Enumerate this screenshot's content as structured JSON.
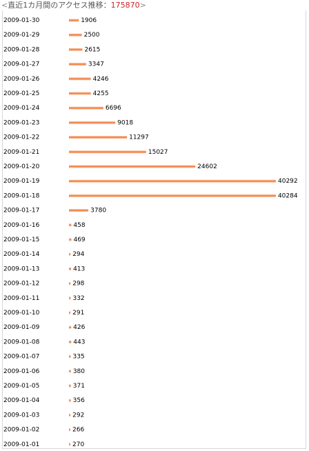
{
  "header": {
    "open": "<",
    "title": "直近1カ月間のアクセス推移：",
    "total": "175870",
    "close": ">"
  },
  "colors": {
    "bar": "#f07a3a",
    "bar_light": "#f9c9a8",
    "total": "#cc2222"
  },
  "chart_data": {
    "type": "bar",
    "orientation": "horizontal",
    "title": "直近1カ月間のアクセス推移：175870",
    "categories": [
      "2009-01-30",
      "2009-01-29",
      "2009-01-28",
      "2009-01-27",
      "2009-01-26",
      "2009-01-25",
      "2009-01-24",
      "2009-01-23",
      "2009-01-22",
      "2009-01-21",
      "2009-01-20",
      "2009-01-19",
      "2009-01-18",
      "2009-01-17",
      "2009-01-16",
      "2009-01-15",
      "2009-01-14",
      "2009-01-13",
      "2009-01-12",
      "2009-01-11",
      "2009-01-10",
      "2009-01-09",
      "2009-01-08",
      "2009-01-07",
      "2009-01-06",
      "2009-01-05",
      "2009-01-04",
      "2009-01-03",
      "2009-01-02",
      "2009-01-01"
    ],
    "values": [
      1906,
      2500,
      2615,
      3347,
      4246,
      4255,
      6696,
      9018,
      11297,
      15027,
      24602,
      40292,
      40284,
      3780,
      458,
      469,
      294,
      413,
      298,
      332,
      291,
      426,
      443,
      335,
      380,
      371,
      356,
      292,
      266,
      270
    ],
    "xlim": [
      0,
      40292
    ]
  }
}
